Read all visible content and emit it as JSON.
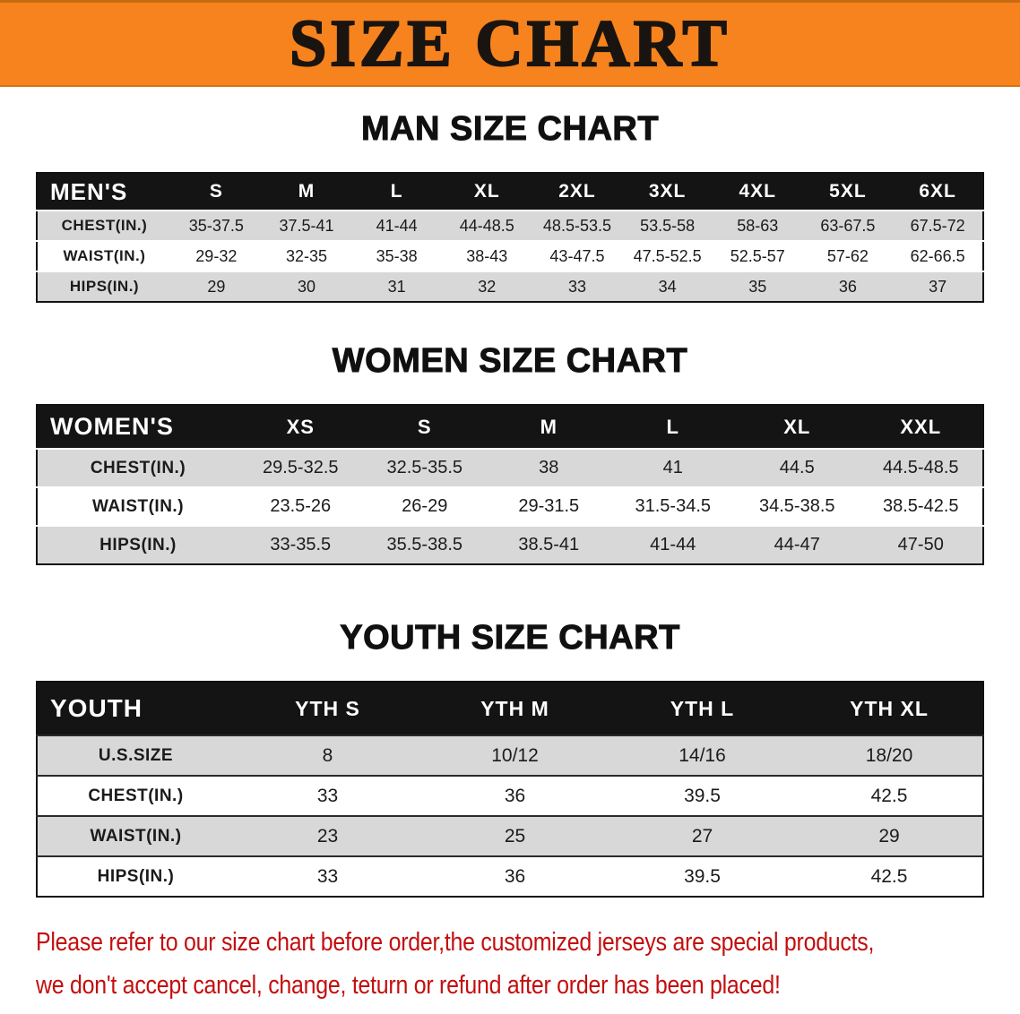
{
  "banner": {
    "title": "SIZE CHART"
  },
  "sections": {
    "men": {
      "title": "MAN SIZE CHART",
      "table": {
        "header": [
          "MEN'S",
          "S",
          "M",
          "L",
          "XL",
          "2XL",
          "3XL",
          "4XL",
          "5XL",
          "6XL"
        ],
        "rows": [
          {
            "label": "CHEST(IN.)",
            "values": [
              "35-37.5",
              "37.5-41",
              "41-44",
              "44-48.5",
              "48.5-53.5",
              "53.5-58",
              "58-63",
              "63-67.5",
              "67.5-72"
            ]
          },
          {
            "label": "WAIST(IN.)",
            "values": [
              "29-32",
              "32-35",
              "35-38",
              "38-43",
              "43-47.5",
              "47.5-52.5",
              "52.5-57",
              "57-62",
              "62-66.5"
            ]
          },
          {
            "label": "HIPS(IN.)",
            "values": [
              "29",
              "30",
              "31",
              "32",
              "33",
              "34",
              "35",
              "36",
              "37"
            ]
          }
        ]
      }
    },
    "women": {
      "title": "WOMEN SIZE CHART",
      "table": {
        "header": [
          "WOMEN'S",
          "XS",
          "S",
          "M",
          "L",
          "XL",
          "XXL"
        ],
        "rows": [
          {
            "label": "CHEST(IN.)",
            "values": [
              "29.5-32.5",
              "32.5-35.5",
              "38",
              "41",
              "44.5",
              "44.5-48.5"
            ]
          },
          {
            "label": "WAIST(IN.)",
            "values": [
              "23.5-26",
              "26-29",
              "29-31.5",
              "31.5-34.5",
              "34.5-38.5",
              "38.5-42.5"
            ]
          },
          {
            "label": "HIPS(IN.)",
            "values": [
              "33-35.5",
              "35.5-38.5",
              "38.5-41",
              "41-44",
              "44-47",
              "47-50"
            ]
          }
        ]
      }
    },
    "youth": {
      "title": "YOUTH SIZE CHART",
      "table": {
        "header": [
          "YOUTH",
          "YTH S",
          "YTH M",
          "YTH L",
          "YTH XL"
        ],
        "rows": [
          {
            "label": "U.S.SIZE",
            "values": [
              "8",
              "10/12",
              "14/16",
              "18/20"
            ]
          },
          {
            "label": "CHEST(IN.)",
            "values": [
              "33",
              "36",
              "39.5",
              "42.5"
            ]
          },
          {
            "label": "WAIST(IN.)",
            "values": [
              "23",
              "25",
              "27",
              "29"
            ]
          },
          {
            "label": "HIPS(IN.)",
            "values": [
              "33",
              "36",
              "39.5",
              "42.5"
            ]
          }
        ]
      }
    }
  },
  "footer": {
    "line1": "Please refer to our size chart before order,the customized jerseys are special products,",
    "line2": "we don't accept cancel, change, teturn or refund after order has been placed!"
  },
  "colors": {
    "banner_bg": "#F6831E",
    "banner_text": "#1A1410",
    "table_header_bg": "#141414",
    "table_header_text": "#FFFFFF",
    "row_alt_bg": "#D8D8D8",
    "footer_text": "#C40E0E"
  }
}
